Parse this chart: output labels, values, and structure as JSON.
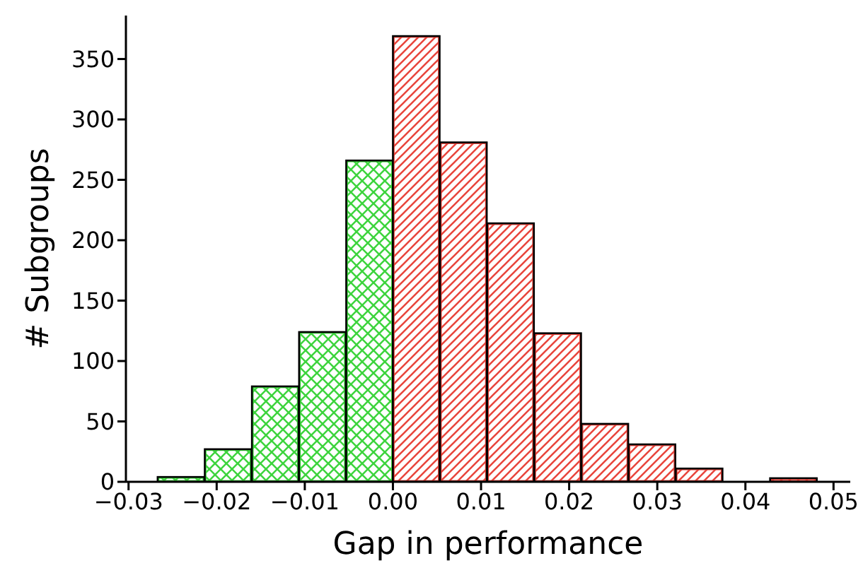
{
  "chart_data": {
    "type": "histogram",
    "xlabel": "Gap in performance",
    "ylabel": "# Subgroups",
    "bins": [
      -0.0267,
      -0.0214,
      -0.016,
      -0.0107,
      -0.0053,
      0,
      0.0053,
      0.0107,
      0.016,
      0.0214,
      0.0267,
      0.0321,
      0.0374,
      0.0428,
      0.0481
    ],
    "values": [
      4,
      27,
      79,
      124,
      266,
      369,
      281,
      214,
      123,
      48,
      31,
      11,
      0,
      3
    ],
    "colors": [
      "#3ed43e",
      "#3ed43e",
      "#3ed43e",
      "#3ed43e",
      "#3ed43e",
      "#e8453c",
      "#e8453c",
      "#e8453c",
      "#e8453c",
      "#e8453c",
      "#e8453c",
      "#e8453c",
      "#e8453c",
      "#e8453c"
    ],
    "xlim": [
      -0.0303,
      0.0519
    ],
    "xticks": [
      {
        "value": -0.03,
        "label": "−0.03"
      },
      {
        "value": -0.02,
        "label": "−0.02"
      },
      {
        "value": -0.01,
        "label": "−0.01"
      },
      {
        "value": 0,
        "label": "0.00"
      },
      {
        "value": 0.01,
        "label": "0.01"
      },
      {
        "value": 0.02,
        "label": "0.02"
      },
      {
        "value": 0.03,
        "label": "0.03"
      },
      {
        "value": 0.04,
        "label": "0.04"
      },
      {
        "value": 0.05,
        "label": "0.05"
      }
    ],
    "ylim": [
      0,
      386
    ],
    "yticks": [
      0,
      50,
      100,
      150,
      200,
      250,
      300,
      350
    ]
  }
}
